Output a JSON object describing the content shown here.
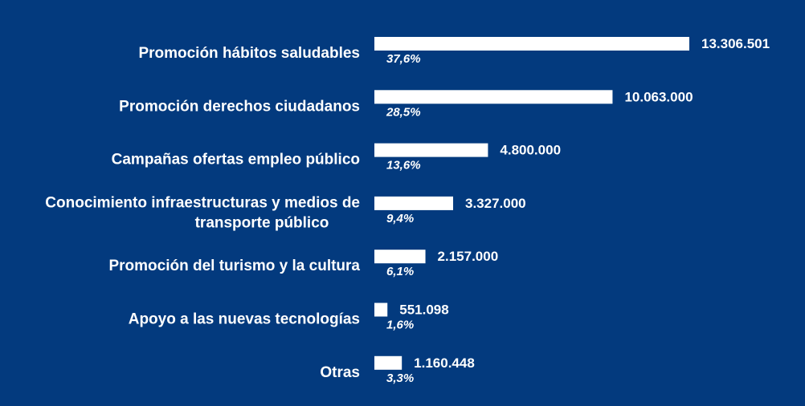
{
  "colors": {
    "background": "#033A7E",
    "bar": "#FFFFFF",
    "text": "#FFFFFF"
  },
  "chart_data": {
    "type": "bar",
    "orientation": "horizontal",
    "categories": [
      [
        "Promoción hábitos saludables"
      ],
      [
        "Promoción derechos ciudadanos"
      ],
      [
        "Campañas ofertas empleo público"
      ],
      [
        "Conocimiento infraestructuras y medios de",
        "transporte público"
      ],
      [
        "Promoción del turismo y la cultura"
      ],
      [
        "Apoyo a las nuevas tecnologías"
      ],
      [
        "Otras"
      ]
    ],
    "values": [
      13306501,
      10063000,
      4800000,
      3327000,
      2157000,
      551098,
      1160448
    ],
    "value_labels": [
      "13.306.501",
      "10.063.000",
      "4.800.000",
      "3.327.000",
      "2.157.000",
      "551.098",
      "1.160.448"
    ],
    "percent_labels": [
      "37,6%",
      "28,5%",
      "13,6%",
      "9,4%",
      "6,1%",
      "1,6%",
      "3,3%"
    ],
    "title": "",
    "xlabel": "",
    "ylabel": "",
    "grid": false,
    "legend": "none"
  }
}
